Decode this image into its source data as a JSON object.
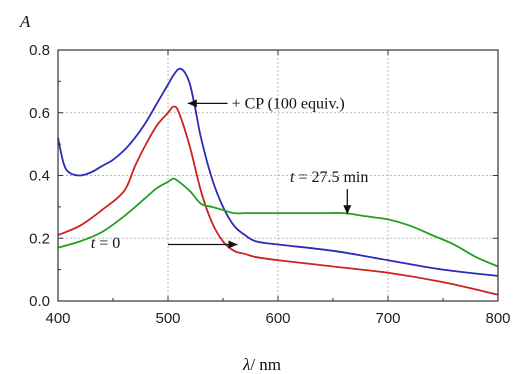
{
  "chart_data": {
    "type": "line",
    "title": "",
    "ylabel": "A",
    "xlabel_symbol": "λ",
    "xlabel_unit": "/ nm",
    "xlim": [
      400,
      800
    ],
    "ylim": [
      0.0,
      0.8
    ],
    "x_ticks": [
      "400",
      "500",
      "600",
      "700",
      "800"
    ],
    "y_ticks": [
      "0.0",
      "0.2",
      "0.4",
      "0.6",
      "0.8"
    ],
    "x_tick_values": [
      400,
      500,
      600,
      700,
      800
    ],
    "y_tick_values": [
      0.0,
      0.2,
      0.4,
      0.6,
      0.8
    ],
    "grid": true,
    "series": [
      {
        "color": "#2b2bb8",
        "x": [
          400,
          405,
          410,
          420,
          430,
          440,
          450,
          460,
          470,
          480,
          490,
          500,
          505,
          510,
          515,
          520,
          525,
          530,
          540,
          550,
          560,
          570,
          580,
          600,
          650,
          700,
          750,
          800
        ],
        "y": [
          0.52,
          0.44,
          0.41,
          0.4,
          0.41,
          0.43,
          0.45,
          0.48,
          0.52,
          0.57,
          0.63,
          0.69,
          0.72,
          0.74,
          0.73,
          0.69,
          0.61,
          0.52,
          0.39,
          0.3,
          0.24,
          0.21,
          0.19,
          0.18,
          0.16,
          0.13,
          0.1,
          0.08
        ]
      },
      {
        "color": "#cc2222",
        "x": [
          400,
          420,
          440,
          460,
          470,
          480,
          490,
          500,
          505,
          510,
          520,
          530,
          540,
          550,
          560,
          570,
          580,
          600,
          650,
          700,
          750,
          800
        ],
        "y": [
          0.21,
          0.24,
          0.29,
          0.35,
          0.43,
          0.5,
          0.56,
          0.6,
          0.62,
          0.6,
          0.49,
          0.35,
          0.25,
          0.19,
          0.16,
          0.15,
          0.14,
          0.13,
          0.11,
          0.09,
          0.06,
          0.02
        ]
      },
      {
        "color": "#22a022",
        "x": [
          400,
          420,
          440,
          460,
          480,
          490,
          500,
          505,
          510,
          520,
          530,
          540,
          550,
          560,
          570,
          580,
          600,
          620,
          640,
          660,
          680,
          700,
          720,
          740,
          760,
          780,
          800
        ],
        "y": [
          0.17,
          0.19,
          0.22,
          0.27,
          0.33,
          0.36,
          0.38,
          0.39,
          0.38,
          0.35,
          0.31,
          0.3,
          0.29,
          0.28,
          0.28,
          0.28,
          0.28,
          0.28,
          0.28,
          0.28,
          0.27,
          0.26,
          0.24,
          0.21,
          0.18,
          0.14,
          0.11
        ]
      }
    ],
    "annotations": [
      {
        "label": "+ CP (100 equiv.)",
        "points_to": [
          518,
          0.63
        ],
        "text_at": [
          536,
          0.63
        ]
      },
      {
        "label_italic": "t",
        "label_rest": " = 27.5 min",
        "points_to": [
          663,
          0.27
        ],
        "text_at": [
          640,
          0.395
        ]
      },
      {
        "label_italic": "t",
        "label_rest": " = 0",
        "points_to": [
          565,
          0.18
        ],
        "text_at": [
          448,
          0.185
        ]
      }
    ]
  }
}
